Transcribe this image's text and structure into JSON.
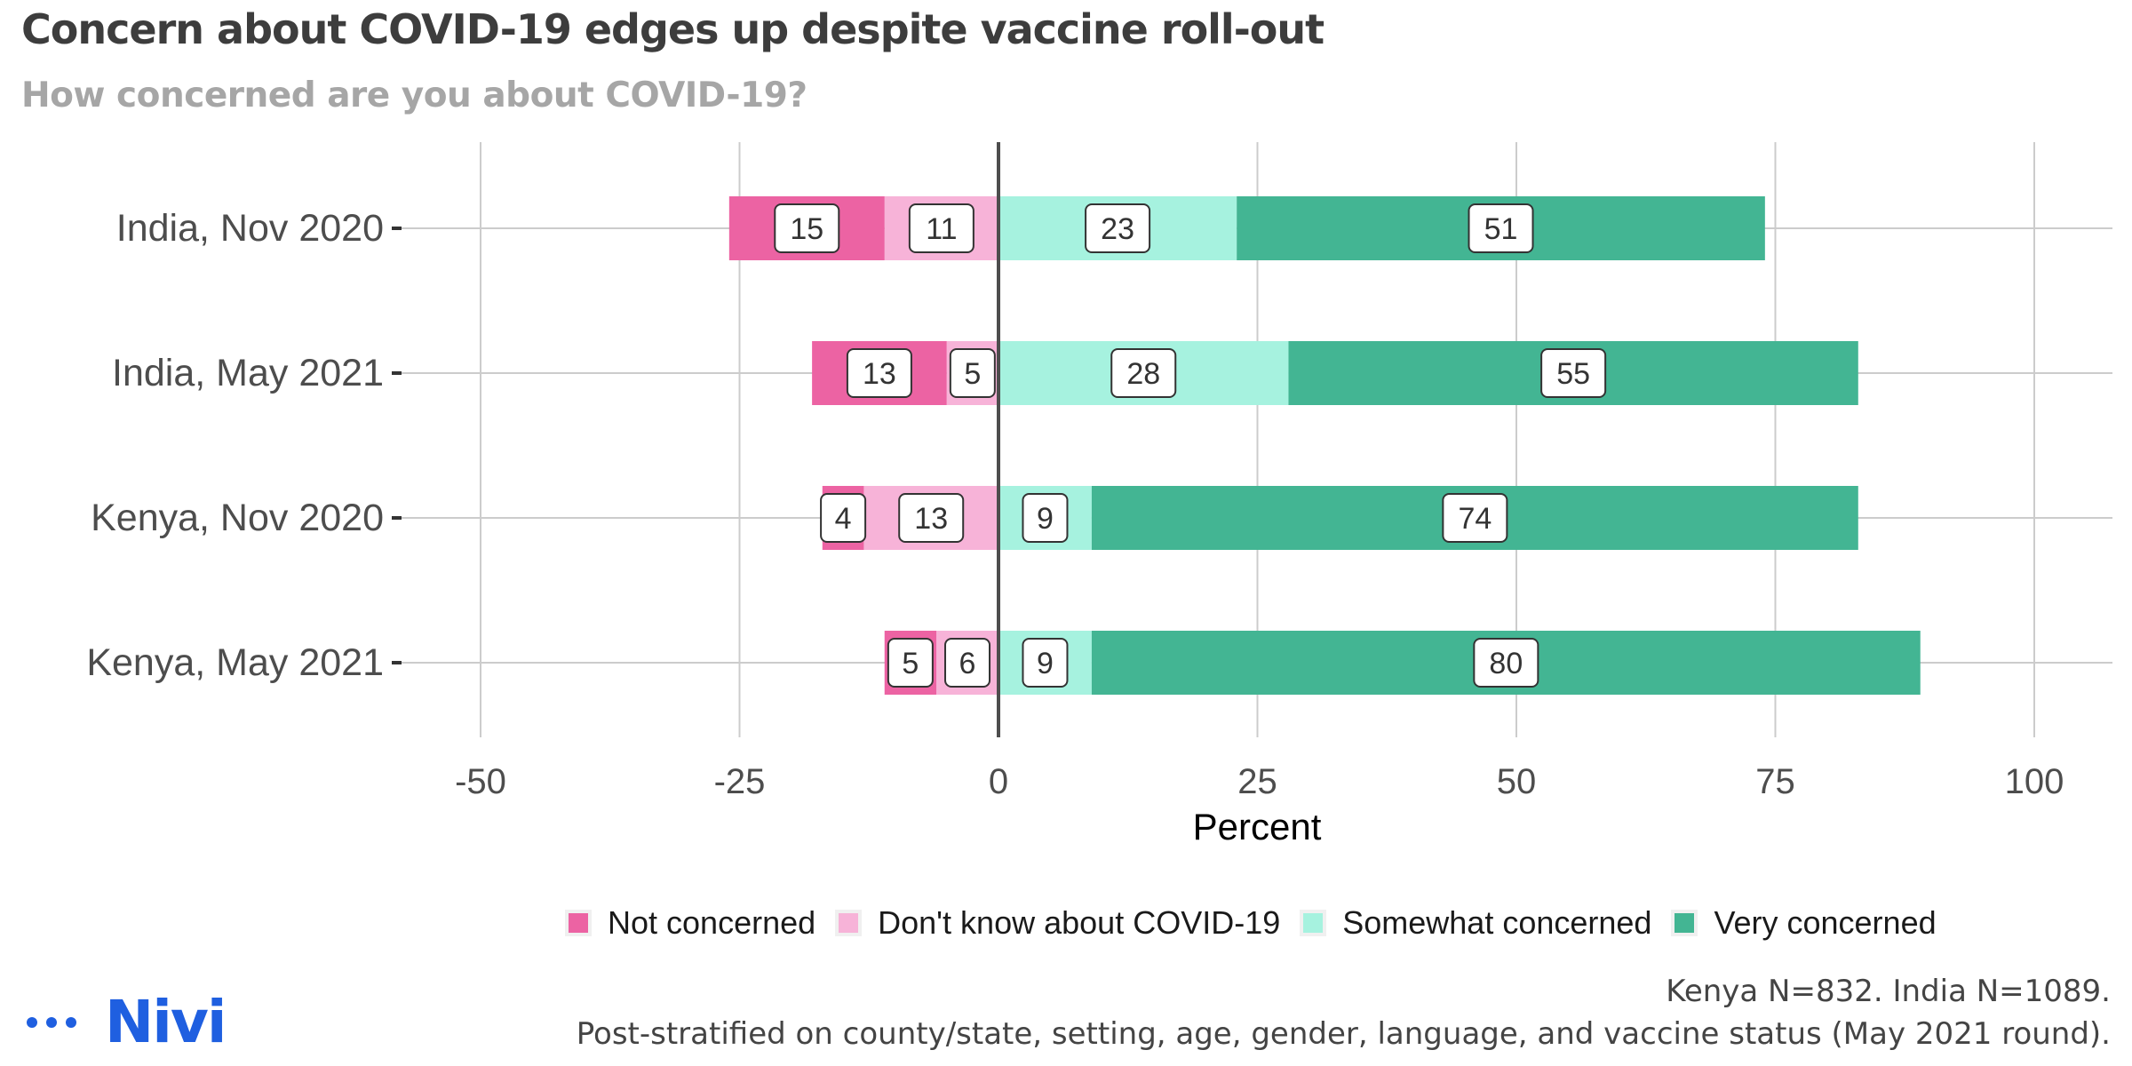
{
  "title": "Concern about COVID-19 edges up despite vaccine roll-out",
  "subtitle": "How concerned are you about COVID-19?",
  "chart_data": {
    "type": "bar",
    "orientation": "horizontal",
    "stacked": true,
    "diverging": true,
    "categories": [
      "India, Nov 2020",
      "India, May 2021",
      "Kenya, Nov 2020",
      "Kenya, May 2021"
    ],
    "series": [
      {
        "name": "Not concerned",
        "color": "#ec63a3",
        "side": "negative",
        "values": [
          15,
          13,
          4,
          5
        ]
      },
      {
        "name": "Don't know about COVID-19",
        "color": "#f7b3d8",
        "side": "negative",
        "values": [
          11,
          5,
          13,
          6
        ]
      },
      {
        "name": "Somewhat concerned",
        "color": "#a6f2df",
        "side": "positive",
        "values": [
          23,
          28,
          9,
          9
        ]
      },
      {
        "name": "Very concerned",
        "color": "#43b593",
        "side": "positive",
        "values": [
          51,
          55,
          74,
          80
        ]
      }
    ],
    "xlabel": "Percent",
    "ylabel": "",
    "xlim": [
      -50,
      100
    ],
    "xticks": [
      -50,
      -25,
      0,
      25,
      50,
      75,
      100
    ],
    "xtick_labels": [
      "-50",
      "-25",
      "0",
      "25",
      "50",
      "75",
      "100"
    ],
    "grid": true,
    "legend_position": "bottom"
  },
  "caption": {
    "line1": "Kenya N=832. India N=1089.",
    "line2": "Post-stratified on county/state, setting, age, gender, language, and vaccine status (May 2021 round)."
  },
  "logo": {
    "text": "Nivi",
    "color": "#1f5fe0"
  }
}
